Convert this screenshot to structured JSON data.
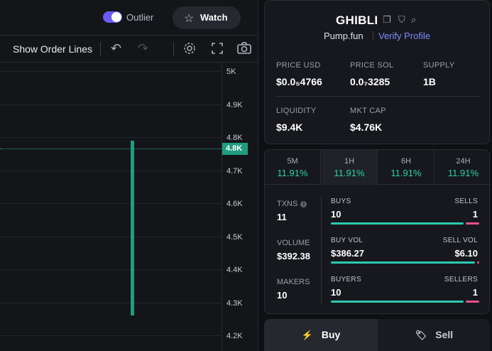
{
  "header": {
    "outlier_label": "Outlier",
    "outlier_on": true,
    "watch_label": "Watch",
    "accent_color": "#6a5cf0"
  },
  "toolbar": {
    "show_order_lines_label": "Show Order Lines",
    "icons": [
      "undo-icon",
      "redo-icon",
      "gear-icon",
      "fullscreen-icon",
      "camera-icon"
    ]
  },
  "chart": {
    "y_axis_labels": [
      "5K",
      "4.9K",
      "4.8K",
      "4.7K",
      "4.6K",
      "4.5K",
      "4.4K",
      "4.3K",
      "4.2K"
    ],
    "current_price_label": "4.8K",
    "candle_color": "#1f9d7e",
    "candle_low": 4.26,
    "candle_high": 4.79
  },
  "token": {
    "name": "GHIBLI",
    "platform": "Pump.fun",
    "verify_label": "Verify Profile",
    "stats": {
      "price_usd_label": "PRICE USD",
      "price_usd": "$0.0₅4766",
      "price_sol_label": "PRICE SOL",
      "price_sol": "0.0₇3285",
      "supply_label": "SUPPLY",
      "supply": "1B",
      "liquidity_label": "LIQUIDITY",
      "liquidity": "$9.4K",
      "mkt_cap_label": "MKT CAP",
      "mkt_cap": "$4.76K"
    }
  },
  "timeframes": [
    {
      "label": "5M",
      "change": "11.91%"
    },
    {
      "label": "1H",
      "change": "11.91%",
      "active": true
    },
    {
      "label": "6H",
      "change": "11.91%"
    },
    {
      "label": "24H",
      "change": "11.91%"
    }
  ],
  "metrics": {
    "txns_label": "TXNS",
    "txns": "11",
    "volume_label": "VOLUME",
    "volume": "$392.38",
    "makers_label": "MAKERS",
    "makers": "10"
  },
  "breakdown": {
    "buys_label": "BUYS",
    "buys": "10",
    "sells_label": "SELLS",
    "sells": "1",
    "buys_ratio": 0.91,
    "buy_vol_label": "BUY VOL",
    "buy_vol": "$386.27",
    "sell_vol_label": "SELL VOL",
    "sell_vol": "$6.10",
    "vol_ratio": 0.984,
    "buyers_label": "BUYERS",
    "buyers": "10",
    "sellers_label": "SELLERS",
    "sellers": "1",
    "buyers_ratio": 0.91
  },
  "trade": {
    "buy_label": "Buy",
    "sell_label": "Sell"
  }
}
